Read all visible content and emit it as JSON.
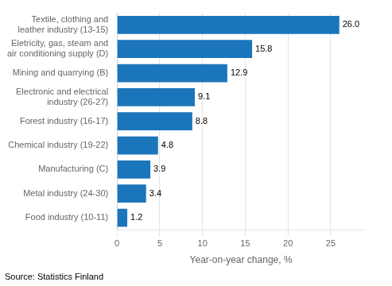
{
  "chart_data": {
    "type": "bar",
    "orientation": "horizontal",
    "categories": [
      "Food industry (10-11)",
      "Metal industry (24-30)",
      "Manufacturing (C)",
      "Chemical industry (19-22)",
      "Forest industry (16-17)",
      "Electronic and electrical\nindustry (26-27)",
      "Mining and quarrying (B)",
      "Eletricity, gas, steam and\nair conditioning supply (D)",
      "Textile, clothing and\nleather industry (13-15)"
    ],
    "values": [
      1.2,
      3.4,
      3.9,
      4.8,
      8.8,
      9.1,
      12.9,
      15.8,
      26.0
    ],
    "value_labels": [
      "1.2",
      "3.4",
      "3.9",
      "4.8",
      "8.8",
      "9.1",
      "12.9",
      "15.8",
      "26.0"
    ],
    "data_labels": true,
    "color": "#1b75bb",
    "xlabel": "Year-on-year change, %",
    "source": "Source: Statistics Finland",
    "xlim": [
      0,
      29
    ],
    "xticks": [
      0,
      5,
      10,
      15,
      20,
      25
    ],
    "grid": true
  }
}
